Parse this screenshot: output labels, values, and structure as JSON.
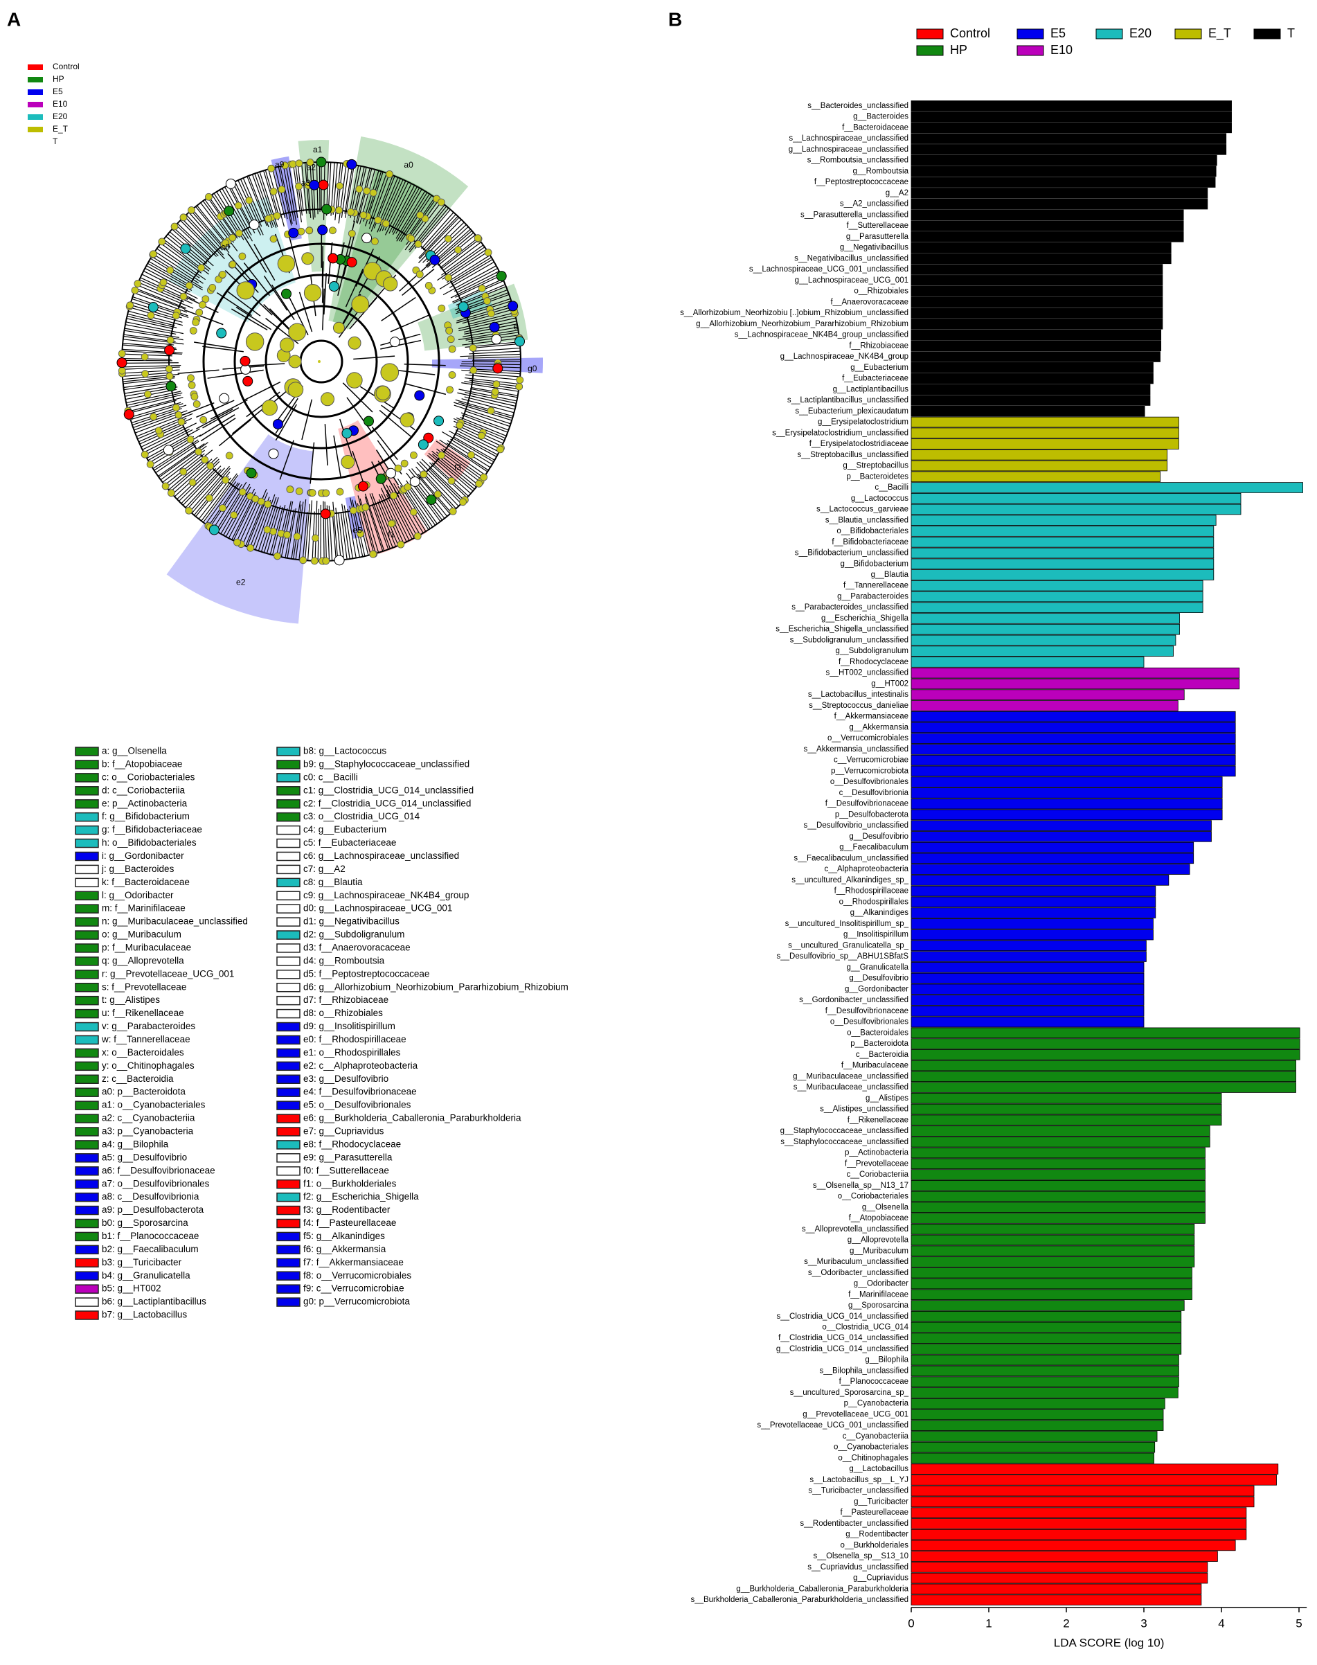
{
  "panel_labels": [
    "A",
    "B"
  ],
  "cladogram": {
    "legend": [
      {
        "name": "Control",
        "color": "#ff0000"
      },
      {
        "name": "HP",
        "color": "#118811"
      },
      {
        "name": "E5",
        "color": "#0000ee"
      },
      {
        "name": "E10",
        "color": "#bb00bb"
      },
      {
        "name": "E20",
        "color": "#1cbcbc"
      },
      {
        "name": "E_T",
        "color": "#bdbd00"
      },
      {
        "name": "T",
        "color": "#ffffff"
      }
    ],
    "clade_labels": [
      "a0",
      "a1",
      "a2",
      "a3",
      "a9",
      "c0",
      "e",
      "g0",
      "f3",
      "f1",
      "e5",
      "e2"
    ],
    "key": [
      {
        "label": "a: g__Olsenella",
        "color": "#118811"
      },
      {
        "label": "b: f__Atopobiaceae",
        "color": "#118811"
      },
      {
        "label": "c: o__Coriobacteriales",
        "color": "#118811"
      },
      {
        "label": "d: c__Coriobacteriia",
        "color": "#118811"
      },
      {
        "label": "e: p__Actinobacteria",
        "color": "#118811"
      },
      {
        "label": "f: g__Bifidobacterium",
        "color": "#1cbcbc"
      },
      {
        "label": "g: f__Bifidobacteriaceae",
        "color": "#1cbcbc"
      },
      {
        "label": "h: o__Bifidobacteriales",
        "color": "#1cbcbc"
      },
      {
        "label": "i: g__Gordonibacter",
        "color": "#0000ee"
      },
      {
        "label": "j: g__Bacteroides",
        "color": "#ffffff"
      },
      {
        "label": "k: f__Bacteroidaceae",
        "color": "#ffffff"
      },
      {
        "label": "l: g__Odoribacter",
        "color": "#118811"
      },
      {
        "label": "m: f__Marinifilaceae",
        "color": "#118811"
      },
      {
        "label": "n: g__Muribaculaceae_unclassified",
        "color": "#118811"
      },
      {
        "label": "o: g__Muribaculum",
        "color": "#118811"
      },
      {
        "label": "p: f__Muribaculaceae",
        "color": "#118811"
      },
      {
        "label": "q: g__Alloprevotella",
        "color": "#118811"
      },
      {
        "label": "r: g__Prevotellaceae_UCG_001",
        "color": "#118811"
      },
      {
        "label": "s: f__Prevotellaceae",
        "color": "#118811"
      },
      {
        "label": "t: g__Alistipes",
        "color": "#118811"
      },
      {
        "label": "u: f__Rikenellaceae",
        "color": "#118811"
      },
      {
        "label": "v: g__Parabacteroides",
        "color": "#1cbcbc"
      },
      {
        "label": "w: f__Tannerellaceae",
        "color": "#1cbcbc"
      },
      {
        "label": "x: o__Bacteroidales",
        "color": "#118811"
      },
      {
        "label": "y: o__Chitinophagales",
        "color": "#118811"
      },
      {
        "label": "z: c__Bacteroidia",
        "color": "#118811"
      },
      {
        "label": "a0: p__Bacteroidota",
        "color": "#118811"
      },
      {
        "label": "a1: o__Cyanobacteriales",
        "color": "#118811"
      },
      {
        "label": "a2: c__Cyanobacteriia",
        "color": "#118811"
      },
      {
        "label": "a3: p__Cyanobacteria",
        "color": "#118811"
      },
      {
        "label": "a4: g__Bilophila",
        "color": "#118811"
      },
      {
        "label": "a5: g__Desulfovibrio",
        "color": "#0000ee"
      },
      {
        "label": "a6: f__Desulfovibrionaceae",
        "color": "#0000ee"
      },
      {
        "label": "a7: o__Desulfovibrionales",
        "color": "#0000ee"
      },
      {
        "label": "a8: c__Desulfovibrionia",
        "color": "#0000ee"
      },
      {
        "label": "a9: p__Desulfobacterota",
        "color": "#0000ee"
      },
      {
        "label": "b0: g__Sporosarcina",
        "color": "#118811"
      },
      {
        "label": "b1: f__Planococcaceae",
        "color": "#118811"
      },
      {
        "label": "b2: g__Faecalibaculum",
        "color": "#0000ee"
      },
      {
        "label": "b3: g__Turicibacter",
        "color": "#ff0000"
      },
      {
        "label": "b4: g__Granulicatella",
        "color": "#0000ee"
      },
      {
        "label": "b5: g__HT002",
        "color": "#bb00bb"
      },
      {
        "label": "b6: g__Lactiplantibacillus",
        "color": "#ffffff"
      },
      {
        "label": "b7: g__Lactobacillus",
        "color": "#ff0000"
      },
      {
        "label": "b8: g__Lactococcus",
        "color": "#1cbcbc"
      },
      {
        "label": "b9: g__Staphylococcaceae_unclassified",
        "color": "#118811"
      },
      {
        "label": "c0: c__Bacilli",
        "color": "#1cbcbc"
      },
      {
        "label": "c1: g__Clostridia_UCG_014_unclassified",
        "color": "#118811"
      },
      {
        "label": "c2: f__Clostridia_UCG_014_unclassified",
        "color": "#118811"
      },
      {
        "label": "c3: o__Clostridia_UCG_014",
        "color": "#118811"
      },
      {
        "label": "c4: g__Eubacterium",
        "color": "#ffffff"
      },
      {
        "label": "c5: f__Eubacteriaceae",
        "color": "#ffffff"
      },
      {
        "label": "c6: g__Lachnospiraceae_unclassified",
        "color": "#ffffff"
      },
      {
        "label": "c7: g__A2",
        "color": "#ffffff"
      },
      {
        "label": "c8: g__Blautia",
        "color": "#1cbcbc"
      },
      {
        "label": "c9: g__Lachnospiraceae_NK4B4_group",
        "color": "#ffffff"
      },
      {
        "label": "d0: g__Lachnospiraceae_UCG_001",
        "color": "#ffffff"
      },
      {
        "label": "d1: g__Negativibacillus",
        "color": "#ffffff"
      },
      {
        "label": "d2: g__Subdoligranulum",
        "color": "#1cbcbc"
      },
      {
        "label": "d3: f__Anaerovoracaceae",
        "color": "#ffffff"
      },
      {
        "label": "d4: g__Romboutsia",
        "color": "#ffffff"
      },
      {
        "label": "d5: f__Peptostreptococcaceae",
        "color": "#ffffff"
      },
      {
        "label": "d6: g__Allorhizobium_Neorhizobium_Pararhizobium_Rhizobium",
        "color": "#ffffff"
      },
      {
        "label": "d7: f__Rhizobiaceae",
        "color": "#ffffff"
      },
      {
        "label": "d8: o__Rhizobiales",
        "color": "#ffffff"
      },
      {
        "label": "d9: g__Insolitispirillum",
        "color": "#0000ee"
      },
      {
        "label": "e0: f__Rhodospirillaceae",
        "color": "#0000ee"
      },
      {
        "label": "e1: o__Rhodospirillales",
        "color": "#0000ee"
      },
      {
        "label": "e2: c__Alphaproteobacteria",
        "color": "#0000ee"
      },
      {
        "label": "e3: g__Desulfovibrio",
        "color": "#0000ee"
      },
      {
        "label": "e4: f__Desulfovibrionaceae",
        "color": "#0000ee"
      },
      {
        "label": "e5: o__Desulfovibrionales",
        "color": "#0000ee"
      },
      {
        "label": "e6: g__Burkholderia_Caballeronia_Paraburkholderia",
        "color": "#ff0000"
      },
      {
        "label": "e7: g__Cupriavidus",
        "color": "#ff0000"
      },
      {
        "label": "e8: f__Rhodocyclaceae",
        "color": "#1cbcbc"
      },
      {
        "label": "e9: g__Parasutterella",
        "color": "#ffffff"
      },
      {
        "label": "f0: f__Sutterellaceae",
        "color": "#ffffff"
      },
      {
        "label": "f1: o__Burkholderiales",
        "color": "#ff0000"
      },
      {
        "label": "f2: g__Escherichia_Shigella",
        "color": "#1cbcbc"
      },
      {
        "label": "f3: g__Rodentibacter",
        "color": "#ff0000"
      },
      {
        "label": "f4: f__Pasteurellaceae",
        "color": "#ff0000"
      },
      {
        "label": "f5: g__Alkanindiges",
        "color": "#0000ee"
      },
      {
        "label": "f6: g__Akkermansia",
        "color": "#0000ee"
      },
      {
        "label": "f7: f__Akkermansiaceae",
        "color": "#0000ee"
      },
      {
        "label": "f8: o__Verrucomicrobiales",
        "color": "#0000ee"
      },
      {
        "label": "f9: c__Verrucomicrobiae",
        "color": "#0000ee"
      },
      {
        "label": "g0: p__Verrucomicrobiota",
        "color": "#0000ee"
      }
    ]
  },
  "chart_data": {
    "type": "bar",
    "orientation": "horizontal",
    "xlabel": "LDA SCORE (log 10)",
    "xlim": [
      0,
      5.1
    ],
    "xticks": [
      0,
      1,
      2,
      3,
      4,
      5
    ],
    "series": [
      {
        "name": "Control",
        "color": "#ff0000",
        "categories": [
          "g__Lactobacillus",
          "s__Lactobacillus_sp__L_YJ",
          "s__Turicibacter_unclassified",
          "g__Turicibacter",
          "f__Pasteurellaceae",
          "s__Rodentibacter_unclassified",
          "g__Rodentibacter",
          "o__Burkholderiales",
          "s__Olsenella_sp__S13_10",
          "s__Cupriavidus_unclassified",
          "g__Cupriavidus",
          "g__Burkholderia_Caballeronia_Paraburkholderia",
          "s__Burkholderia_Caballeronia_Paraburkholderia_unclassified"
        ],
        "values": [
          4.73,
          4.71,
          4.42,
          4.42,
          4.32,
          4.32,
          4.32,
          4.18,
          3.95,
          3.82,
          3.82,
          3.74,
          3.74
        ]
      },
      {
        "name": "HP",
        "color": "#118811",
        "categories": [
          "o__Bacteroidales",
          "p__Bacteroidota",
          "c__Bacteroidia",
          "f__Muribaculaceae",
          "g__Muribaculaceae_unclassified",
          "s__Muribaculaceae_unclassified",
          "g__Alistipes",
          "s__Alistipes_unclassified",
          "f__Rikenellaceae",
          "g__Staphylococcaceae_unclassified",
          "s__Staphylococcaceae_unclassified",
          "p__Actinobacteria",
          "f__Prevotellaceae",
          "c__Coriobacteriia",
          "s__Olsenella_sp__N13_17",
          "o__Coriobacteriales",
          "g__Olsenella",
          "f__Atopobiaceae",
          "s__Alloprevotella_unclassified",
          "g__Alloprevotella",
          "g__Muribaculum",
          "s__Muribaculum_unclassified",
          "s__Odoribacter_unclassified",
          "g__Odoribacter",
          "f__Marinifilaceae",
          "g__Sporosarcina",
          "s__Clostridia_UCG_014_unclassified",
          "o__Clostridia_UCG_014",
          "f__Clostridia_UCG_014_unclassified",
          "g__Clostridia_UCG_014_unclassified",
          "g__Bilophila",
          "s__Bilophila_unclassified",
          "f__Planococcaceae",
          "s__uncultured_Sporosarcina_sp_",
          "p__Cyanobacteria",
          "g__Prevotellaceae_UCG_001",
          "s__Prevotellaceae_UCG_001_unclassified",
          "c__Cyanobacteriia",
          "o__Cyanobacteriales",
          "o__Chitinophagales"
        ],
        "values": [
          5.01,
          5.01,
          5.01,
          4.96,
          4.96,
          4.96,
          4.0,
          4.0,
          4.0,
          3.85,
          3.85,
          3.79,
          3.79,
          3.79,
          3.79,
          3.79,
          3.79,
          3.79,
          3.65,
          3.65,
          3.65,
          3.65,
          3.62,
          3.62,
          3.62,
          3.52,
          3.48,
          3.48,
          3.48,
          3.48,
          3.45,
          3.45,
          3.45,
          3.44,
          3.27,
          3.25,
          3.25,
          3.17,
          3.14,
          3.13
        ]
      },
      {
        "name": "E5",
        "color": "#0000ee",
        "categories": [
          "f__Akkermansiaceae",
          "g__Akkermansia",
          "o__Verrucomicrobiales",
          "s__Akkermansia_unclassified",
          "c__Verrucomicrobiae",
          "p__Verrucomicrobiota",
          "o__Desulfovibrionales",
          "c__Desulfovibrionia",
          "f__Desulfovibrionaceae",
          "p__Desulfobacterota",
          "s__Desulfovibrio_unclassified",
          "g__Desulfovibrio",
          "g__Faecalibaculum",
          "s__Faecalibaculum_unclassified",
          "c__Alphaproteobacteria",
          "s__uncultured_Alkanindiges_sp_",
          "f__Rhodospirillaceae",
          "o__Rhodospirillales",
          "g__Alkanindiges",
          "s__uncultured_Insolitispirillum_sp_",
          "g__Insolitispirillum",
          "s__uncultured_Granulicatella_sp_",
          "s__Desulfovibrio_sp__ABHU1SBfatS",
          "g__Granulicatella",
          "g__Desulfovibrio",
          "g__Gordonibacter",
          "s__Gordonibacter_unclassified",
          "f__Desulfovibrionaceae",
          "o__Desulfovibrionales"
        ],
        "values": [
          4.18,
          4.18,
          4.18,
          4.18,
          4.18,
          4.18,
          4.01,
          4.01,
          4.01,
          4.01,
          3.87,
          3.87,
          3.64,
          3.64,
          3.59,
          3.32,
          3.15,
          3.15,
          3.15,
          3.12,
          3.12,
          3.03,
          3.03,
          3.0,
          3.0,
          3.0,
          3.0,
          3.0,
          3.0
        ]
      },
      {
        "name": "E10",
        "color": "#bb00bb",
        "categories": [
          "s__HT002_unclassified",
          "g__HT002",
          "s__Lactobacillus_intestinalis",
          "s__Streptococcus_danieliae"
        ],
        "values": [
          4.23,
          4.23,
          3.52,
          3.44
        ]
      },
      {
        "name": "E20",
        "color": "#1cbcbc",
        "categories": [
          "c__Bacilli",
          "g__Lactococcus",
          "s__Lactococcus_garvieae",
          "s__Blautia_unclassified",
          "o__Bifidobacteriales",
          "f__Bifidobacteriaceae",
          "s__Bifidobacterium_unclassified",
          "g__Bifidobacterium",
          "g__Blautia",
          "f__Tannerellaceae",
          "g__Parabacteroides",
          "s__Parabacteroides_unclassified",
          "g__Escherichia_Shigella",
          "s__Escherichia_Shigella_unclassified",
          "s__Subdoligranulum_unclassified",
          "g__Subdoligranulum",
          "f__Rhodocyclaceae"
        ],
        "values": [
          5.05,
          4.25,
          4.25,
          3.93,
          3.9,
          3.9,
          3.9,
          3.9,
          3.9,
          3.76,
          3.76,
          3.76,
          3.46,
          3.46,
          3.41,
          3.38,
          3.0
        ]
      },
      {
        "name": "E_T",
        "color": "#bdbd00",
        "categories": [
          "g__Erysipelatoclostridium",
          "s__Erysipelatoclostridium_unclassified",
          "f__Erysipelatoclostridiaceae",
          "s__Streptobacillus_unclassified",
          "g__Streptobacillus",
          "p__Bacteroidetes"
        ],
        "values": [
          3.45,
          3.45,
          3.45,
          3.3,
          3.3,
          3.21
        ]
      },
      {
        "name": "T",
        "color": "#000000",
        "categories": [
          "s__Bacteroides_unclassified",
          "g__Bacteroides",
          "f__Bacteroidaceae",
          "s__Lachnospiraceae_unclassified",
          "g__Lachnospiraceae_unclassified",
          "s__Romboutsia_unclassified",
          "g__Romboutsia",
          "f__Peptostreptococcaceae",
          "g__A2",
          "s__A2_unclassified",
          "s__Parasutterella_unclassified",
          "f__Sutterellaceae",
          "g__Parasutterella",
          "g__Negativibacillus",
          "s__Negativibacillus_unclassified",
          "s__Lachnospiraceae_UCG_001_unclassified",
          "g__Lachnospiraceae_UCG_001",
          "o__Rhizobiales",
          "f__Anaerovoracaceae",
          "s__Allorhizobium_Neorhizobiu [..]obium_Rhizobium_unclassified",
          "g__Allorhizobium_Neorhizobium_Pararhizobium_Rhizobium",
          "s__Lachnospiraceae_NK4B4_group_unclassified",
          "f__Rhizobiaceae",
          "g__Lachnospiraceae_NK4B4_group",
          "g__Eubacterium",
          "f__Eubacteriaceae",
          "g__Lactiplantibacillus",
          "s__Lactiplantibacillus_unclassified",
          "s__Eubacterium_plexicaudatum"
        ],
        "values": [
          4.13,
          4.13,
          4.13,
          4.06,
          4.06,
          3.94,
          3.93,
          3.92,
          3.82,
          3.82,
          3.51,
          3.51,
          3.51,
          3.35,
          3.35,
          3.24,
          3.24,
          3.24,
          3.24,
          3.24,
          3.24,
          3.22,
          3.22,
          3.21,
          3.12,
          3.12,
          3.08,
          3.08,
          3.01
        ]
      }
    ]
  }
}
